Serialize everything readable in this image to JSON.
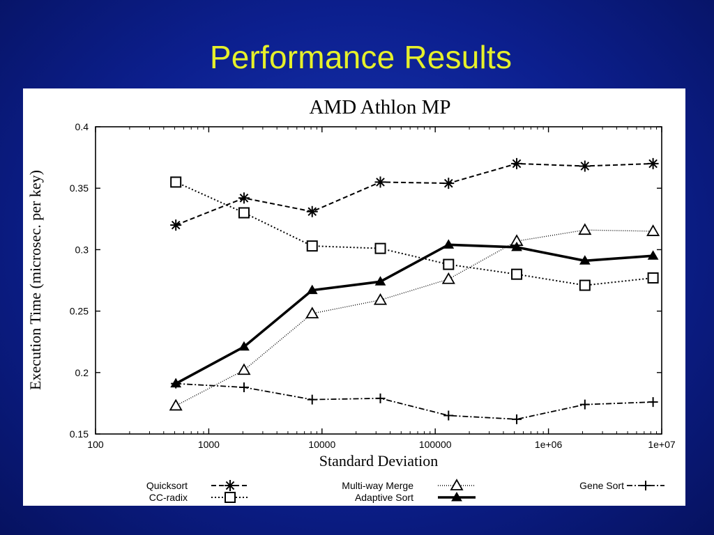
{
  "slide": {
    "title": "Performance Results"
  },
  "chart_data": {
    "type": "line",
    "title": "AMD Athlon MP",
    "xlabel": "Standard Deviation",
    "ylabel": "Execution Time (microsec. per key)",
    "xscale": "log",
    "xlim": [
      100,
      10000000
    ],
    "ylim": [
      0.15,
      0.4
    ],
    "xticks": [
      100,
      1000,
      10000,
      100000,
      1000000,
      10000000
    ],
    "xtick_labels": [
      "100",
      "1000",
      "10000",
      "100000",
      "1e+06",
      "1e+07"
    ],
    "yticks": [
      0.15,
      0.2,
      0.25,
      0.3,
      0.35,
      0.4
    ],
    "ytick_labels": [
      "0.15",
      "0.2",
      "0.25",
      "0.3",
      "0.35",
      "0.4"
    ],
    "grid": false,
    "legend_position": "bottom",
    "x": [
      512,
      2048,
      8192,
      32768,
      131072,
      524288,
      2097152,
      8388608
    ],
    "series": [
      {
        "name": "Quicksort",
        "marker": "asterisk",
        "dash": "dashed",
        "color": "#000000",
        "values": [
          0.32,
          0.342,
          0.331,
          0.355,
          0.354,
          0.37,
          0.368,
          0.37
        ]
      },
      {
        "name": "CC-radix",
        "marker": "square",
        "dash": "dotted",
        "color": "#000000",
        "values": [
          0.355,
          0.33,
          0.303,
          0.301,
          0.288,
          0.28,
          0.271,
          0.277
        ]
      },
      {
        "name": "Multi-way Merge",
        "marker": "triangle-open",
        "dash": "fine-dotted",
        "color": "#000000",
        "values": [
          0.173,
          0.202,
          0.248,
          0.259,
          0.276,
          0.307,
          0.316,
          0.315
        ]
      },
      {
        "name": "Adaptive Sort",
        "marker": "triangle-filled",
        "dash": "solid-thick",
        "color": "#000000",
        "values": [
          0.191,
          0.221,
          0.267,
          0.274,
          0.304,
          0.302,
          0.291,
          0.295
        ]
      },
      {
        "name": "Gene Sort",
        "marker": "plus",
        "dash": "dash-dot",
        "color": "#000000",
        "values": [
          0.191,
          0.188,
          0.178,
          0.179,
          0.165,
          0.162,
          0.174,
          0.176
        ]
      }
    ]
  }
}
